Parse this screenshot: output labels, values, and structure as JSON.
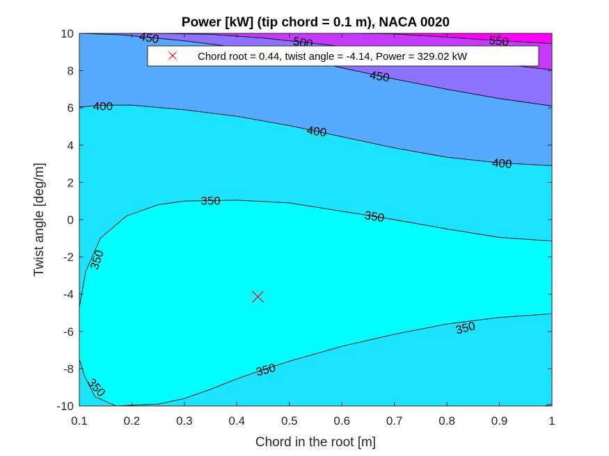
{
  "chart_data": {
    "type": "contour",
    "title": "Power [kW] (tip chord = 0.1 m), NACA 0020",
    "xlabel": "Chord in the root [m]",
    "ylabel": "Twist angle [deg/m]",
    "xlim": [
      0.1,
      1
    ],
    "ylim": [
      -10,
      10
    ],
    "xticks": [
      0.1,
      0.2,
      0.3,
      0.4,
      0.5,
      0.6,
      0.7,
      0.8,
      0.9,
      1
    ],
    "xtick_labels": [
      "0.1",
      "0.2",
      "0.3",
      "0.4",
      "0.5",
      "0.6",
      "0.7",
      "0.8",
      "0.9",
      "1"
    ],
    "yticks": [
      -10,
      -8,
      -6,
      -4,
      -2,
      0,
      2,
      4,
      6,
      8,
      10
    ],
    "ytick_labels": [
      "-10",
      "-8",
      "-6",
      "-4",
      "-2",
      "0",
      "2",
      "4",
      "6",
      "8",
      "10"
    ],
    "grid": false,
    "legend_position": "top-right",
    "legend_entry": "Chord root = 0.44, twist angle = -4.14, Power = 329.02 kW",
    "marker": {
      "x": 0.44,
      "y": -4.14,
      "symbol": "x",
      "color": "#ff0000"
    },
    "levels": [
      {
        "value": "350",
        "fill": "#00ffff"
      },
      {
        "value": "400",
        "fill": "#1ce3ff"
      },
      {
        "value": "450",
        "fill": "#55aaff"
      },
      {
        "value": "500",
        "fill": "#8e71ff"
      },
      {
        "value": "550",
        "fill": "#c639ff"
      },
      {
        "value": "",
        "fill": "#ff00ff"
      }
    ],
    "contours": [
      {
        "level": 350,
        "closed": true,
        "points": [
          [
            0.1,
            -4.7
          ],
          [
            0.112,
            -2.8
          ],
          [
            0.14,
            -1.0
          ],
          [
            0.19,
            0.2
          ],
          [
            0.25,
            0.8
          ],
          [
            0.3,
            1.0
          ],
          [
            0.4,
            1.05
          ],
          [
            0.5,
            0.9
          ],
          [
            0.6,
            0.45
          ],
          [
            0.7,
            0.0
          ],
          [
            0.8,
            -0.5
          ],
          [
            0.9,
            -0.95
          ],
          [
            1.0,
            -1.15
          ],
          [
            1.0,
            -5.05
          ],
          [
            0.9,
            -5.25
          ],
          [
            0.8,
            -5.6
          ],
          [
            0.7,
            -6.15
          ],
          [
            0.6,
            -6.8
          ],
          [
            0.5,
            -7.6
          ],
          [
            0.45,
            -8.05
          ],
          [
            0.4,
            -8.55
          ],
          [
            0.35,
            -9.1
          ],
          [
            0.3,
            -9.6
          ],
          [
            0.25,
            -9.9
          ],
          [
            0.17,
            -10.0
          ],
          [
            0.13,
            -9.5
          ],
          [
            0.11,
            -8.4
          ],
          [
            0.1,
            -7.5
          ]
        ]
      },
      {
        "level": 400,
        "points": [
          [
            0.1,
            6.05
          ],
          [
            0.15,
            6.15
          ],
          [
            0.2,
            6.15
          ],
          [
            0.3,
            5.9
          ],
          [
            0.4,
            5.55
          ],
          [
            0.5,
            5.05
          ],
          [
            0.6,
            4.45
          ],
          [
            0.7,
            3.85
          ],
          [
            0.8,
            3.35
          ],
          [
            0.9,
            3.05
          ],
          [
            1.0,
            2.9
          ]
        ]
      },
      {
        "level": 400,
        "points": [
          [
            0.985,
            -10.0
          ],
          [
            1.0,
            -9.9
          ]
        ]
      },
      {
        "level": 450,
        "points": [
          [
            0.1,
            10.0
          ],
          [
            0.18,
            9.92
          ],
          [
            0.3,
            9.6
          ],
          [
            0.4,
            9.25
          ],
          [
            0.5,
            8.75
          ],
          [
            0.6,
            8.15
          ],
          [
            0.7,
            7.55
          ],
          [
            0.8,
            7.0
          ],
          [
            0.9,
            6.5
          ],
          [
            1.0,
            6.1
          ]
        ]
      },
      {
        "level": 500,
        "points": [
          [
            0.24,
            10.0
          ],
          [
            0.35,
            9.95
          ],
          [
            0.45,
            9.75
          ],
          [
            0.55,
            9.45
          ],
          [
            0.65,
            9.15
          ],
          [
            0.75,
            8.8
          ],
          [
            0.85,
            8.5
          ],
          [
            0.95,
            8.2
          ],
          [
            1.0,
            8.05
          ]
        ]
      },
      {
        "level": 550,
        "points": [
          [
            0.61,
            10.0
          ],
          [
            0.7,
            9.97
          ],
          [
            0.8,
            9.8
          ],
          [
            0.9,
            9.6
          ],
          [
            1.0,
            9.45
          ]
        ]
      }
    ],
    "contour_labels": [
      {
        "text": "400",
        "x": 0.145,
        "y": 6.1,
        "angle": 0
      },
      {
        "text": "400",
        "x": 0.552,
        "y": 4.75,
        "angle": 8
      },
      {
        "text": "400",
        "x": 0.905,
        "y": 3.03,
        "angle": 4
      },
      {
        "text": "450",
        "x": 0.233,
        "y": 9.78,
        "angle": 10
      },
      {
        "text": "450",
        "x": 0.672,
        "y": 7.7,
        "angle": 9
      },
      {
        "text": "500",
        "x": 0.526,
        "y": 9.52,
        "angle": 10
      },
      {
        "text": "550",
        "x": 0.899,
        "y": 9.6,
        "angle": 6
      },
      {
        "text": "350",
        "x": 0.35,
        "y": 1.02,
        "angle": 0
      },
      {
        "text": "350",
        "x": 0.662,
        "y": 0.18,
        "angle": 9
      },
      {
        "text": "350",
        "x": 0.133,
        "y": -2.15,
        "angle": -72
      },
      {
        "text": "350",
        "x": 0.835,
        "y": -5.8,
        "angle": -15
      },
      {
        "text": "350",
        "x": 0.455,
        "y": -8.05,
        "angle": -15
      },
      {
        "text": "350",
        "x": 0.133,
        "y": -9.0,
        "angle": 48
      }
    ]
  }
}
